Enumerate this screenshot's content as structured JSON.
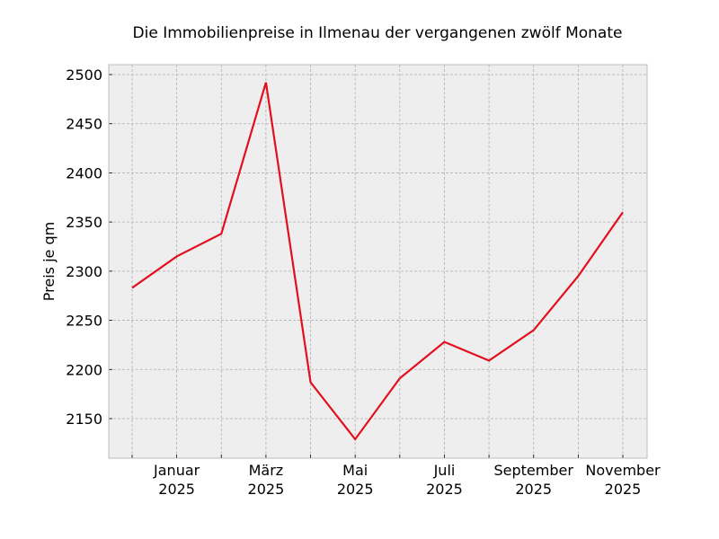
{
  "chart_data": {
    "type": "line",
    "title": "Die Immobilienpreise in Ilmenau der vergangenen zwölf Monate",
    "xlabel": "",
    "ylabel": "Preis je qm",
    "x": [
      "2024-12",
      "2025-01",
      "2025-02",
      "2025-03",
      "2025-04",
      "2025-05",
      "2025-06",
      "2025-07",
      "2025-08",
      "2025-09",
      "2025-10",
      "2025-11"
    ],
    "series": [
      {
        "name": "Preis je qm",
        "color": "#e0101e",
        "values": [
          2283,
          2315,
          2338,
          2492,
          2187,
          2129,
          2191,
          2228,
          2209,
          2240,
          2295,
          2360
        ]
      }
    ],
    "x_tick_labels": [
      {
        "index": 1,
        "month": "Januar",
        "year": "2025"
      },
      {
        "index": 3,
        "month": "März",
        "year": "2025"
      },
      {
        "index": 5,
        "month": "Mai",
        "year": "2025"
      },
      {
        "index": 7,
        "month": "Juli",
        "year": "2025"
      },
      {
        "index": 9,
        "month": "September",
        "year": "2025"
      },
      {
        "index": 11,
        "month": "November",
        "year": "2025"
      }
    ],
    "y_ticks": [
      2150,
      2200,
      2250,
      2300,
      2350,
      2400,
      2450,
      2500
    ],
    "ylim": [
      2110,
      2510
    ],
    "grid": true,
    "legend": null
  },
  "colors": {
    "plot_bg": "#eeeeee",
    "grid": "#b0b0b0",
    "line": "#e0101e",
    "spine": "#bcbcbc"
  }
}
